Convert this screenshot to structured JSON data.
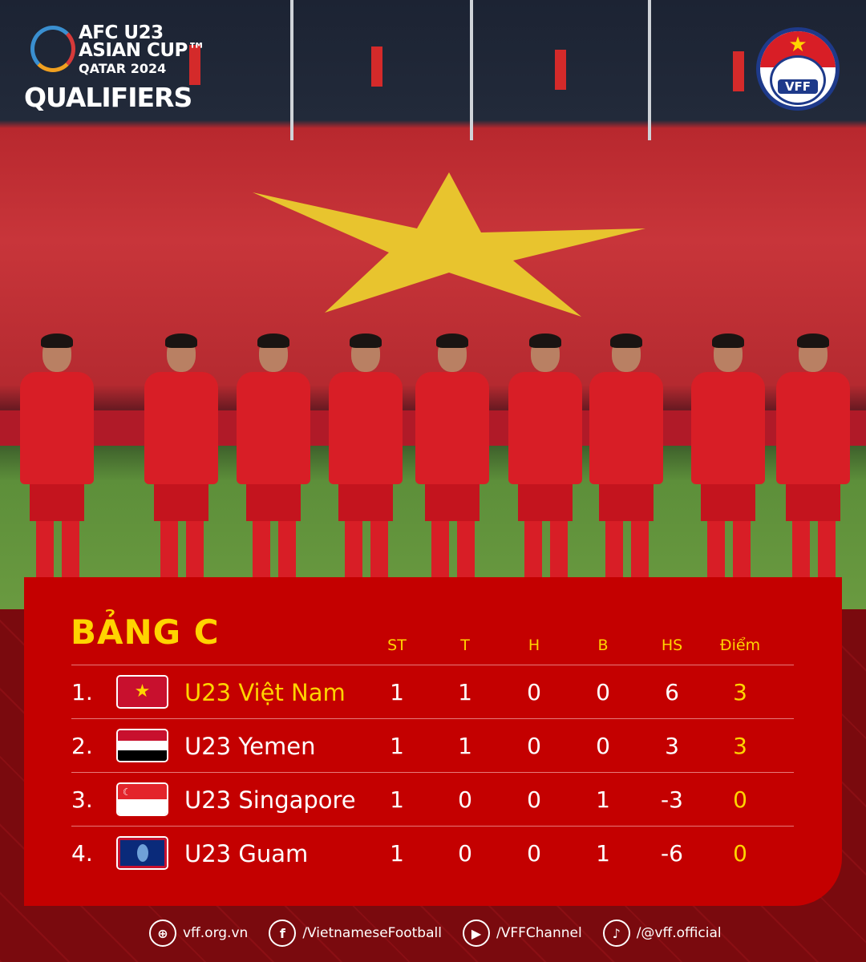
{
  "logo": {
    "line1": "AFC U23",
    "line2": "ASIAN CUP™",
    "line3": "QATAR 2024",
    "line4": "QUALIFIERS"
  },
  "vff_logo": "VFF",
  "colors": {
    "panel": "#c40000",
    "accent": "#ffd400",
    "text": "#ffffff"
  },
  "table": {
    "title": "BẢNG C",
    "headers": [
      "ST",
      "T",
      "H",
      "B",
      "HS",
      "Điểm"
    ],
    "rows": [
      {
        "rank": "1.",
        "team": "U23 Việt Nam",
        "flag": "vietnam-flag",
        "values": [
          "1",
          "1",
          "0",
          "0",
          "6",
          "3"
        ],
        "highlight": true
      },
      {
        "rank": "2.",
        "team": "U23 Yemen",
        "flag": "yemen-flag",
        "values": [
          "1",
          "1",
          "0",
          "0",
          "3",
          "3"
        ]
      },
      {
        "rank": "3.",
        "team": "U23 Singapore",
        "flag": "singapore-flag",
        "values": [
          "1",
          "0",
          "0",
          "1",
          "-3",
          "0"
        ]
      },
      {
        "rank": "4.",
        "team": "U23 Guam",
        "flag": "guam-flag",
        "values": [
          "1",
          "0",
          "0",
          "1",
          "-6",
          "0"
        ]
      }
    ]
  },
  "footer": [
    {
      "icon": "globe-icon",
      "text": "vff.org.vn"
    },
    {
      "icon": "facebook-icon",
      "text": "/VietnameseFootball"
    },
    {
      "icon": "youtube-icon",
      "text": "/VFFChannel"
    },
    {
      "icon": "tiktok-icon",
      "text": "/@vff.official"
    }
  ]
}
